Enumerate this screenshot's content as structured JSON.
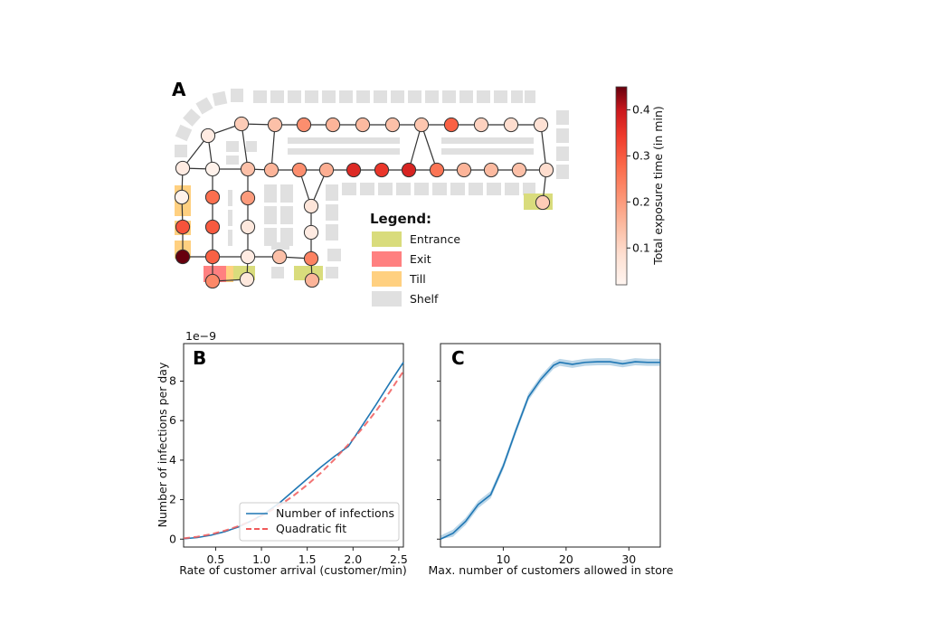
{
  "panel_a": {
    "letter": "A",
    "legend": {
      "title": "Legend:",
      "items": [
        {
          "label": "Entrance",
          "color": "#d9dc7c"
        },
        {
          "label": "Exit",
          "color": "#ff8080"
        },
        {
          "label": "Till",
          "color": "#ffd080"
        },
        {
          "label": "Shelf",
          "color": "#e0e0e0"
        }
      ]
    },
    "colorbar": {
      "label": "Total exposure time (in min)",
      "ticks": [
        "0.1",
        "0.2",
        "0.3",
        "0.4"
      ],
      "tick_values": [
        0.1,
        0.2,
        0.3,
        0.4
      ],
      "range": [
        0.02,
        0.45
      ],
      "colormap": "Reds"
    },
    "node_values": [
      0.05,
      0.12,
      0.14,
      0.22,
      0.16,
      0.15,
      0.14,
      0.13,
      0.29,
      0.11,
      0.09,
      0.08,
      0.05,
      0.03,
      0.14,
      0.16,
      0.22,
      0.17,
      0.37,
      0.35,
      0.38,
      0.26,
      0.16,
      0.15,
      0.14,
      0.09,
      0.12,
      0.03,
      0.27,
      0.31,
      0.3,
      0.45,
      0.29,
      0.23,
      0.2,
      0.06,
      0.05,
      0.06,
      0.07,
      0.05,
      0.24,
      0.16,
      0.14,
      0.03
    ]
  },
  "chart_data": [
    {
      "type": "line",
      "panel": "B",
      "xlabel": "Rate of customer arrival (customer/min)",
      "ylabel": "Number of infections per day",
      "scale_label": "1e−9",
      "xlim": [
        0.15,
        2.55
      ],
      "ylim": [
        -0.4,
        9.9
      ],
      "xticks": [
        "0.5",
        "1.0",
        "1.5",
        "2.0",
        "2.5"
      ],
      "xtick_values": [
        0.5,
        1.0,
        1.5,
        2.0,
        2.5
      ],
      "yticks": [
        "0",
        "2",
        "4",
        "6",
        "8"
      ],
      "ytick_values": [
        0,
        2,
        4,
        6,
        8
      ],
      "legend": [
        "Number of infections",
        "Quadratic fit"
      ],
      "series": [
        {
          "name": "Number of infections",
          "color": "#1f77b4",
          "x": [
            0.15,
            0.3,
            0.45,
            0.6,
            0.75,
            0.9,
            1.05,
            1.2,
            1.35,
            1.5,
            1.65,
            1.8,
            1.95,
            2.1,
            2.25,
            2.4,
            2.55
          ],
          "y": [
            0.02,
            0.08,
            0.2,
            0.38,
            0.62,
            0.95,
            1.35,
            1.85,
            2.45,
            3.05,
            3.65,
            4.2,
            4.7,
            5.75,
            6.8,
            7.9,
            8.95
          ]
        },
        {
          "name": "Quadratic fit",
          "color": "#f05a5a",
          "dashed": true,
          "x": [
            0.15,
            0.3,
            0.45,
            0.6,
            0.75,
            0.9,
            1.05,
            1.2,
            1.35,
            1.5,
            1.65,
            1.8,
            1.95,
            2.1,
            2.25,
            2.4,
            2.55
          ],
          "y": [
            0.04,
            0.12,
            0.25,
            0.43,
            0.66,
            0.95,
            1.3,
            1.72,
            2.2,
            2.75,
            3.36,
            4.05,
            4.8,
            5.6,
            6.48,
            7.45,
            8.5
          ]
        }
      ]
    },
    {
      "type": "line",
      "panel": "C",
      "xlabel": "Max. number of customers allowed in store",
      "xlim": [
        0,
        35
      ],
      "ylim": [
        -0.4,
        9.9
      ],
      "xticks": [
        "10",
        "20",
        "30"
      ],
      "xtick_values": [
        10,
        20,
        30
      ],
      "series": [
        {
          "name": "Number of infections",
          "color": "#1f77b4",
          "x": [
            0,
            2,
            4,
            6,
            8,
            10,
            12,
            14,
            16,
            18,
            19,
            21,
            23,
            25,
            27,
            29,
            31,
            33,
            35
          ],
          "y": [
            0,
            0.3,
            0.9,
            1.75,
            2.25,
            3.7,
            5.5,
            7.2,
            8.1,
            8.8,
            8.95,
            8.85,
            8.95,
            8.98,
            8.98,
            8.88,
            8.98,
            8.95,
            8.95
          ],
          "band": 0.18
        }
      ]
    }
  ]
}
